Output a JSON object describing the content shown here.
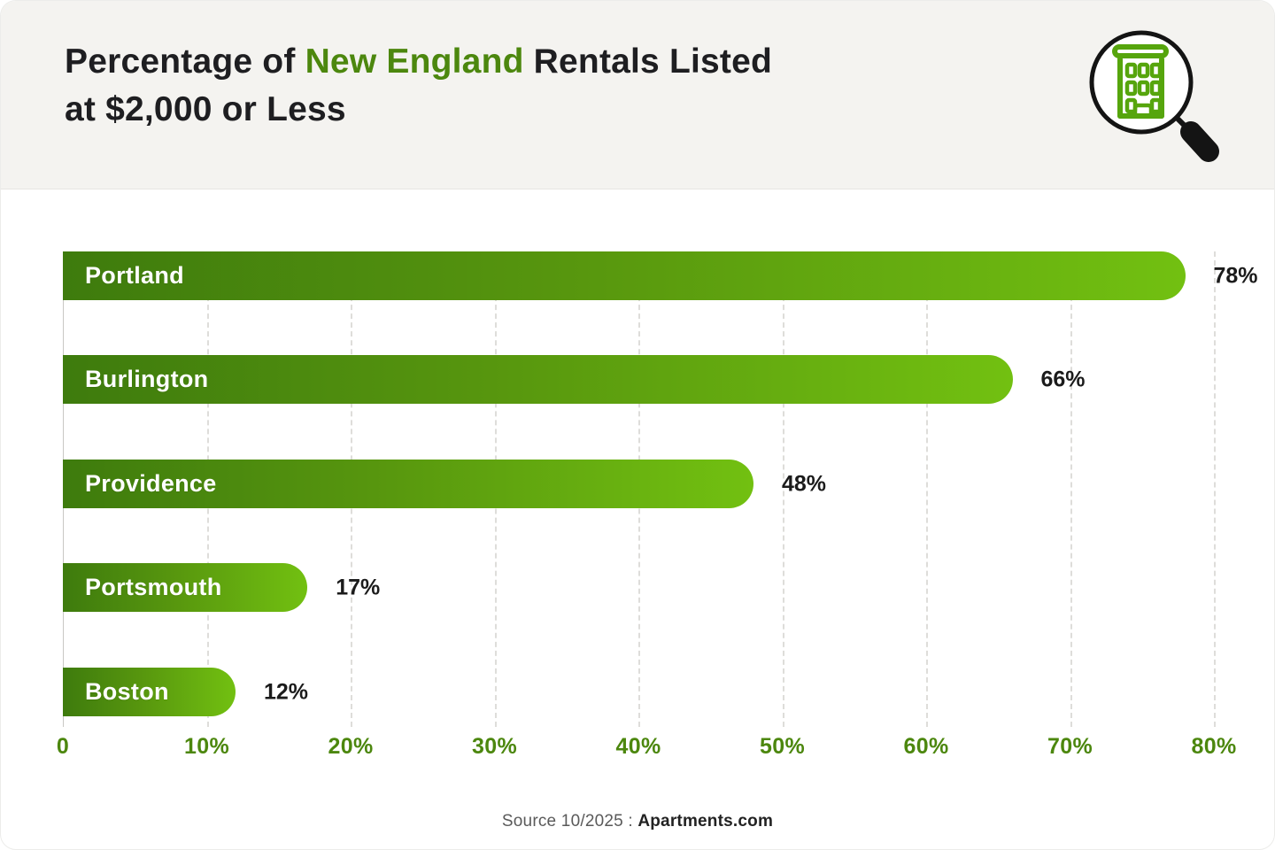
{
  "title": {
    "prefix": "Percentage of ",
    "highlight": "New England",
    "suffix": " Rentals Listed",
    "line2": "at $2,000 or Less"
  },
  "header_icon": "magnifier-over-building-icon",
  "chart_data": {
    "type": "bar",
    "orientation": "horizontal",
    "title": "Percentage of New England Rentals Listed at $2,000 or Less",
    "categories": [
      "Portland",
      "Burlington",
      "Providence",
      "Portsmouth",
      "Boston"
    ],
    "values": [
      78,
      66,
      48,
      17,
      12
    ],
    "value_labels": [
      "78%",
      "66%",
      "48%",
      "17%",
      "12%"
    ],
    "xlim": [
      0,
      80
    ],
    "ticks": [
      "0",
      "10%",
      "20%",
      "30%",
      "40%",
      "50%",
      "60%",
      "70%",
      "80%"
    ],
    "grid": "dashed-vertical",
    "legend": "none",
    "bar_gradient": [
      "#3e7b0d",
      "#72c011"
    ],
    "tick_color": "#4c870e",
    "bar_label_color": "#ffffff",
    "value_label_color": "#1b1b1b"
  },
  "source": {
    "label": "Source 10/2025 : ",
    "brand": "Apartments.com"
  },
  "colors": {
    "header_bg": "#f4f3f0",
    "card_bg": "#ffffff",
    "title_text": "#1e1e21",
    "accent_green": "#4c870e"
  }
}
